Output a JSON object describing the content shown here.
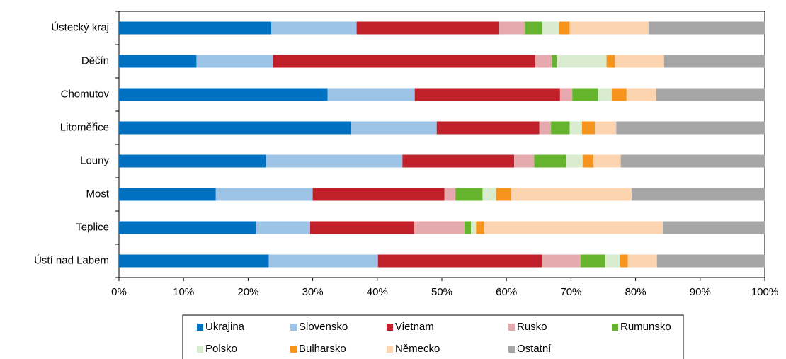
{
  "chart_data": {
    "type": "bar",
    "orientation": "horizontal",
    "stacked": true,
    "categories": [
      "Ústecký kraj",
      "Děčín",
      "Chomutov",
      "Litoměřice",
      "Louny",
      "Most",
      "Teplice",
      "Ústí nad Labem"
    ],
    "series": [
      {
        "name": "Ukrajina",
        "color": "#0070c0",
        "values": [
          23.6,
          12.0,
          32.3,
          35.9,
          22.7,
          15.0,
          21.2,
          23.2
        ]
      },
      {
        "name": "Slovensko",
        "color": "#9dc3e6",
        "values": [
          13.2,
          11.9,
          13.5,
          13.3,
          21.2,
          15.0,
          8.4,
          16.9
        ]
      },
      {
        "name": "Vietnam",
        "color": "#c0202a",
        "values": [
          22.0,
          40.6,
          22.5,
          15.9,
          17.3,
          20.4,
          16.1,
          25.4
        ]
      },
      {
        "name": "Rusko",
        "color": "#e6a9ad",
        "values": [
          4.0,
          2.5,
          1.9,
          1.8,
          3.1,
          1.7,
          7.8,
          6.0
        ]
      },
      {
        "name": "Rumunsko",
        "color": "#66b32e",
        "values": [
          2.7,
          0.8,
          4.0,
          2.9,
          4.9,
          4.2,
          1.0,
          3.8
        ]
      },
      {
        "name": "Polsko",
        "color": "#d9ecd0",
        "values": [
          2.7,
          7.7,
          2.1,
          1.9,
          2.6,
          2.1,
          0.8,
          2.3
        ]
      },
      {
        "name": "Bulharsko",
        "color": "#f7941d",
        "values": [
          1.6,
          1.3,
          2.3,
          2.0,
          1.7,
          2.3,
          1.3,
          1.2
        ]
      },
      {
        "name": "Německo",
        "color": "#fcd5b0",
        "values": [
          12.2,
          7.6,
          4.6,
          3.3,
          4.2,
          18.7,
          27.6,
          4.5
        ]
      },
      {
        "name": "Ostatní",
        "color": "#a6a6a6",
        "values": [
          18.0,
          15.6,
          16.8,
          23.0,
          22.3,
          20.6,
          15.8,
          16.7
        ]
      }
    ],
    "xlim": [
      0,
      100
    ],
    "xticks": [
      {
        "value": 0,
        "label": "0%"
      },
      {
        "value": 10,
        "label": "10%"
      },
      {
        "value": 20,
        "label": "20%"
      },
      {
        "value": 30,
        "label": "30%"
      },
      {
        "value": 40,
        "label": "40%"
      },
      {
        "value": 50,
        "label": "50%"
      },
      {
        "value": 60,
        "label": "60%"
      },
      {
        "value": 70,
        "label": "70%"
      },
      {
        "value": 80,
        "label": "80%"
      },
      {
        "value": 90,
        "label": "90%"
      },
      {
        "value": 100,
        "label": "100%"
      }
    ],
    "legend": "bottom"
  }
}
